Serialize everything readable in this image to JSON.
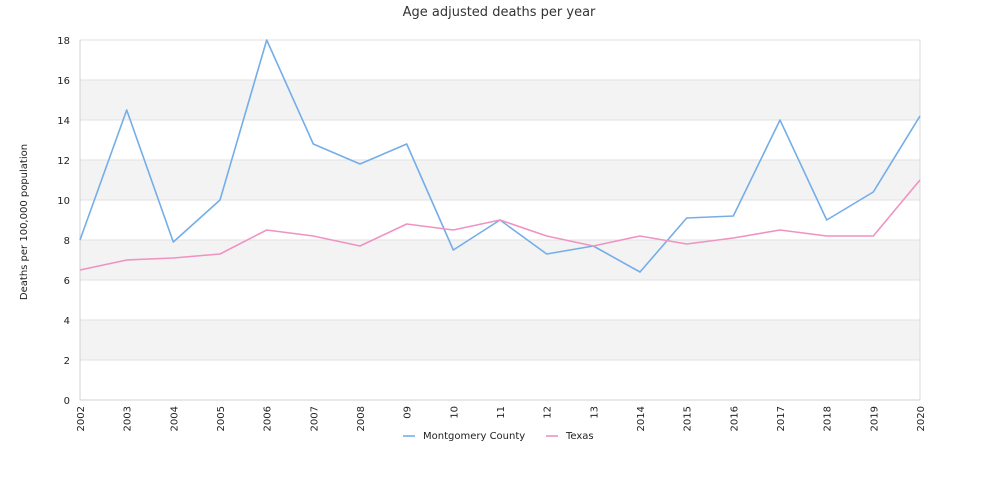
{
  "chart_data": {
    "type": "line",
    "title": "Age adjusted deaths per year",
    "ylabel": "Deaths per 100,000 population",
    "xlabel": "",
    "ylim": [
      0,
      18
    ],
    "yticks": [
      0,
      2,
      4,
      6,
      8,
      10,
      12,
      14,
      16,
      18
    ],
    "x": [
      "2002",
      "2003",
      "2004",
      "2005",
      "2006",
      "2007",
      "2008",
      "09",
      "10",
      "11",
      "12",
      "13",
      "2014",
      "2015",
      "2016",
      "2017",
      "2018",
      "2019",
      "2020"
    ],
    "series": [
      {
        "name": "Montgomery County",
        "color": "#74aee9",
        "values": [
          8.0,
          14.5,
          7.9,
          10.0,
          18.0,
          12.8,
          11.8,
          12.8,
          7.5,
          9.0,
          7.3,
          7.7,
          6.4,
          9.1,
          9.2,
          14.0,
          9.0,
          10.4,
          14.2
        ]
      },
      {
        "name": "Texas",
        "color": "#f092c3",
        "values": [
          6.5,
          7.0,
          7.1,
          7.3,
          8.5,
          8.2,
          7.7,
          8.8,
          8.5,
          9.0,
          8.2,
          7.7,
          8.2,
          7.8,
          8.1,
          8.5,
          8.2,
          8.2,
          11.0
        ]
      }
    ],
    "grid": "alternating horizontal bands",
    "legend": "bottom-center"
  }
}
